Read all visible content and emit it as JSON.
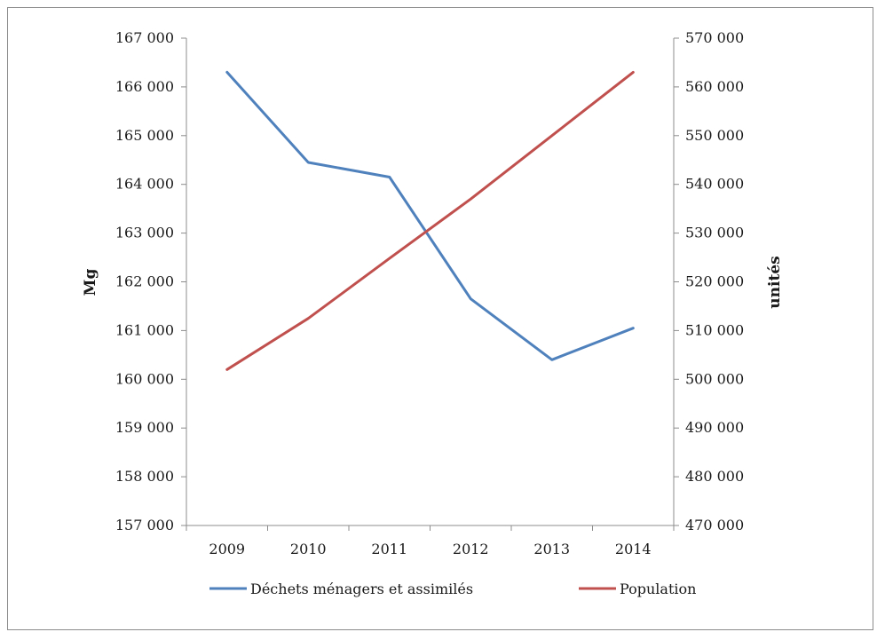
{
  "chart_data": {
    "type": "line",
    "title": "",
    "categories": [
      "2009",
      "2010",
      "2011",
      "2012",
      "2013",
      "2014"
    ],
    "series": [
      {
        "name": "Déchets ménagers et assimilés",
        "axis": "left",
        "color": "#4f81bd",
        "values": [
          166300,
          164450,
          164150,
          161650,
          160400,
          161050
        ]
      },
      {
        "name": "Population",
        "axis": "right",
        "color": "#c0504d",
        "values": [
          502000,
          512500,
          524800,
          537000,
          550000,
          563000
        ]
      }
    ],
    "y_left": {
      "label": "Mg",
      "range": [
        157000,
        167000
      ],
      "ticks": [
        "157 000",
        "158 000",
        "159 000",
        "160 000",
        "161 000",
        "162 000",
        "163 000",
        "164 000",
        "165 000",
        "166 000",
        "167 000"
      ]
    },
    "y_right": {
      "label": "unités",
      "range": [
        470000,
        570000
      ],
      "ticks": [
        "470 000",
        "480 000",
        "490 000",
        "500 000",
        "510 000",
        "520 000",
        "530 000",
        "540 000",
        "550 000",
        "560 000",
        "570 000"
      ]
    },
    "grid": false,
    "legend_position": "bottom"
  }
}
